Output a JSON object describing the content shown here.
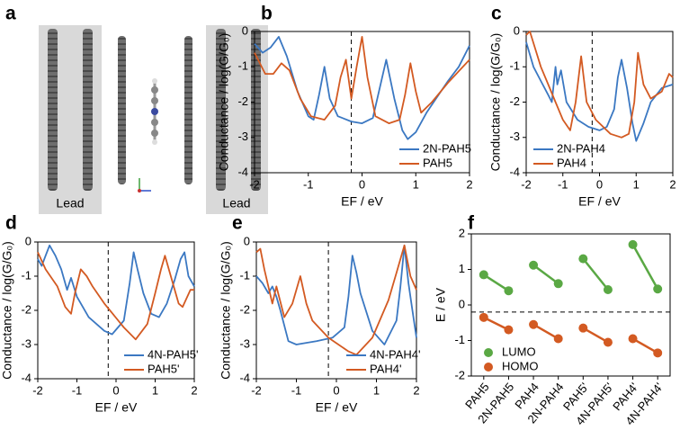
{
  "panel_a": {
    "label": "a",
    "leads": [
      "Lead",
      "Lead"
    ]
  },
  "chart_data": [
    {
      "type": "line",
      "panel": "b",
      "x_label": "EF / eV",
      "y_label": "Conductance / log(G/G₀)",
      "xlim": [
        -2,
        2
      ],
      "ylim": [
        -4,
        0
      ],
      "xticks": [
        -2,
        -1,
        0,
        1,
        2
      ],
      "yticks": [
        -4,
        -3,
        -2,
        -1,
        0
      ],
      "vline": -0.2,
      "legend": "lower right",
      "series": [
        {
          "name": "2N-PAH5",
          "color": "#3b78c2",
          "x": [
            -2,
            -1.85,
            -1.7,
            -1.55,
            -1.4,
            -1.2,
            -1.0,
            -0.9,
            -0.8,
            -0.7,
            -0.6,
            -0.45,
            -0.2,
            0,
            0.2,
            0.3,
            0.45,
            0.6,
            0.75,
            0.85,
            1.0,
            1.2,
            1.4,
            1.6,
            1.8,
            2
          ],
          "values": [
            -0.35,
            -0.6,
            -0.45,
            -0.15,
            -0.7,
            -1.7,
            -2.4,
            -2.5,
            -1.8,
            -1.0,
            -1.9,
            -2.4,
            -2.55,
            -2.6,
            -2.45,
            -1.8,
            -0.8,
            -1.9,
            -2.8,
            -3.05,
            -2.85,
            -2.3,
            -1.85,
            -1.4,
            -1.0,
            -0.4
          ]
        },
        {
          "name": "PAH5",
          "color": "#d35a22",
          "x": [
            -2,
            -1.8,
            -1.65,
            -1.5,
            -1.35,
            -1.15,
            -0.95,
            -0.7,
            -0.5,
            -0.4,
            -0.3,
            -0.2,
            -0.1,
            0,
            0.1,
            0.25,
            0.5,
            0.7,
            0.8,
            0.9,
            1.0,
            1.1,
            1.3,
            1.6,
            2
          ],
          "values": [
            -0.6,
            -1.2,
            -1.2,
            -0.9,
            -1.1,
            -1.9,
            -2.4,
            -2.5,
            -2.1,
            -1.3,
            -0.8,
            -1.9,
            -1.0,
            -0.15,
            -1.3,
            -2.4,
            -2.6,
            -2.5,
            -1.8,
            -0.9,
            -1.7,
            -2.3,
            -2.0,
            -1.45,
            -0.8
          ]
        }
      ]
    },
    {
      "type": "line",
      "panel": "c",
      "x_label": "EF / eV",
      "y_label": "Conductance / log(G/G₀)",
      "xlim": [
        -2,
        2
      ],
      "ylim": [
        -4,
        0
      ],
      "xticks": [
        -2,
        -1,
        0,
        1,
        2
      ],
      "yticks": [
        -4,
        -3,
        -2,
        -1,
        0
      ],
      "vline": -0.2,
      "legend": "lower left",
      "series": [
        {
          "name": "2N-PAH4",
          "color": "#3b78c2",
          "x": [
            -2,
            -1.8,
            -1.6,
            -1.4,
            -1.3,
            -1.2,
            -1.15,
            -1.05,
            -0.9,
            -0.6,
            -0.3,
            0,
            0.2,
            0.4,
            0.5,
            0.6,
            0.75,
            0.9,
            1.0,
            1.2,
            1.4,
            1.7,
            2
          ],
          "values": [
            -0.3,
            -1.0,
            -1.4,
            -1.8,
            -2.0,
            -1.0,
            -1.5,
            -1.1,
            -2.0,
            -2.5,
            -2.7,
            -2.8,
            -2.7,
            -2.2,
            -1.3,
            -0.8,
            -1.6,
            -2.6,
            -3.1,
            -2.6,
            -2.0,
            -1.6,
            -1.5
          ]
        },
        {
          "name": "PAH4",
          "color": "#d35a22",
          "x": [
            -2,
            -1.9,
            -1.75,
            -1.6,
            -1.4,
            -1.2,
            -1.0,
            -0.8,
            -0.65,
            -0.5,
            -0.35,
            -0.1,
            0.3,
            0.6,
            0.8,
            0.95,
            1.05,
            1.2,
            1.4,
            1.7,
            1.9,
            2
          ],
          "values": [
            -0.1,
            0,
            -0.5,
            -1.0,
            -1.5,
            -2.0,
            -2.5,
            -2.8,
            -2.0,
            -0.7,
            -2.0,
            -2.5,
            -2.9,
            -3.0,
            -2.9,
            -2.0,
            -0.6,
            -1.5,
            -1.9,
            -1.7,
            -1.2,
            -1.3
          ]
        }
      ]
    },
    {
      "type": "line",
      "panel": "d",
      "x_label": "EF / eV",
      "y_label": "Conductance / log(G/G₀)",
      "xlim": [
        -2,
        2
      ],
      "ylim": [
        -4,
        0
      ],
      "xticks": [
        -2,
        -1,
        0,
        1,
        2
      ],
      "yticks": [
        -4,
        -3,
        -2,
        -1,
        0
      ],
      "vline": -0.2,
      "legend": "lower right",
      "series": [
        {
          "name": "4N-PAH5'",
          "color": "#3b78c2",
          "x": [
            -2,
            -1.9,
            -1.8,
            -1.7,
            -1.55,
            -1.4,
            -1.25,
            -1.15,
            -1.0,
            -0.7,
            -0.3,
            -0.1,
            0.2,
            0.35,
            0.45,
            0.55,
            0.7,
            0.9,
            1.1,
            1.3,
            1.5,
            1.65,
            1.75,
            1.85,
            2
          ],
          "values": [
            -0.5,
            -0.7,
            -0.4,
            -0.1,
            -0.4,
            -0.8,
            -1.4,
            -1.05,
            -1.6,
            -2.2,
            -2.6,
            -2.7,
            -2.3,
            -1.2,
            -0.3,
            -0.8,
            -1.5,
            -2.1,
            -2.2,
            -1.8,
            -1.1,
            -0.5,
            -0.3,
            -1.0,
            -1.3
          ]
        },
        {
          "name": "PAH5'",
          "color": "#d35a22",
          "x": [
            -2,
            -1.8,
            -1.5,
            -1.3,
            -1.15,
            -1.05,
            -0.9,
            -0.75,
            -0.6,
            -0.3,
            0.2,
            0.5,
            0.8,
            1.0,
            1.15,
            1.25,
            1.4,
            1.6,
            1.7,
            1.9,
            2
          ],
          "values": [
            -0.3,
            -0.8,
            -1.3,
            -1.9,
            -2.1,
            -1.5,
            -0.8,
            -1.0,
            -1.3,
            -1.8,
            -2.5,
            -2.85,
            -2.4,
            -1.5,
            -0.8,
            -0.4,
            -1.0,
            -1.8,
            -1.9,
            -1.4,
            -1.4
          ]
        }
      ]
    },
    {
      "type": "line",
      "panel": "e",
      "x_label": "EF / eV",
      "y_label": "Conductance / log(G/G₀)",
      "xlim": [
        -2,
        2
      ],
      "ylim": [
        -4,
        0
      ],
      "xticks": [
        -2,
        -1,
        0,
        1,
        2
      ],
      "yticks": [
        -4,
        -3,
        -2,
        -1,
        0
      ],
      "vline": -0.2,
      "legend": "lower right",
      "series": [
        {
          "name": "4N-PAH4'",
          "color": "#3b78c2",
          "x": [
            -2,
            -1.85,
            -1.7,
            -1.6,
            -1.5,
            -1.4,
            -1.2,
            -1.0,
            -0.5,
            -0.1,
            0.2,
            0.3,
            0.4,
            0.5,
            0.6,
            0.9,
            1.2,
            1.5,
            1.6,
            1.7,
            1.8,
            1.9,
            2
          ],
          "values": [
            -1.0,
            -1.2,
            -1.5,
            -1.3,
            -1.6,
            -2.0,
            -2.9,
            -3.0,
            -2.9,
            -2.8,
            -2.5,
            -1.6,
            -0.4,
            -0.9,
            -1.5,
            -2.6,
            -3.0,
            -2.3,
            -1.3,
            -0.1,
            -1.2,
            -2.0,
            -2.8
          ]
        },
        {
          "name": "PAH4'",
          "color": "#d35a22",
          "x": [
            -2,
            -1.9,
            -1.8,
            -1.6,
            -1.5,
            -1.3,
            -1.1,
            -0.9,
            -0.75,
            -0.6,
            -0.2,
            0.3,
            0.5,
            0.9,
            1.3,
            1.5,
            1.7,
            1.85,
            2
          ],
          "values": [
            -0.3,
            -0.2,
            -0.8,
            -1.8,
            -1.3,
            -2.2,
            -1.8,
            -1.0,
            -1.8,
            -2.3,
            -2.8,
            -3.2,
            -3.3,
            -2.8,
            -1.7,
            -0.9,
            -0.1,
            -1.0,
            -1.4
          ]
        }
      ]
    },
    {
      "type": "dumbbell",
      "panel": "f",
      "y_label": "E / eV",
      "categories": [
        "PAH5",
        "2N-PAH5",
        "PAH4",
        "2N-PAH4",
        "PAH5'",
        "4N-PAH5'",
        "PAH4'",
        "4N-PAH4'"
      ],
      "ylim": [
        -2,
        2
      ],
      "yticks": [
        -2,
        -1,
        0,
        1,
        2
      ],
      "hline": -0.2,
      "legend": "lower left",
      "series": [
        {
          "name": "LUMO",
          "color": "#5aa844",
          "values": [
            0.85,
            0.4,
            1.12,
            0.6,
            1.3,
            0.43,
            1.7,
            0.45
          ]
        },
        {
          "name": "HOMO",
          "color": "#d35a22",
          "values": [
            -0.35,
            -0.7,
            -0.55,
            -0.95,
            -0.65,
            -1.05,
            -0.95,
            -1.35
          ]
        }
      ]
    }
  ]
}
